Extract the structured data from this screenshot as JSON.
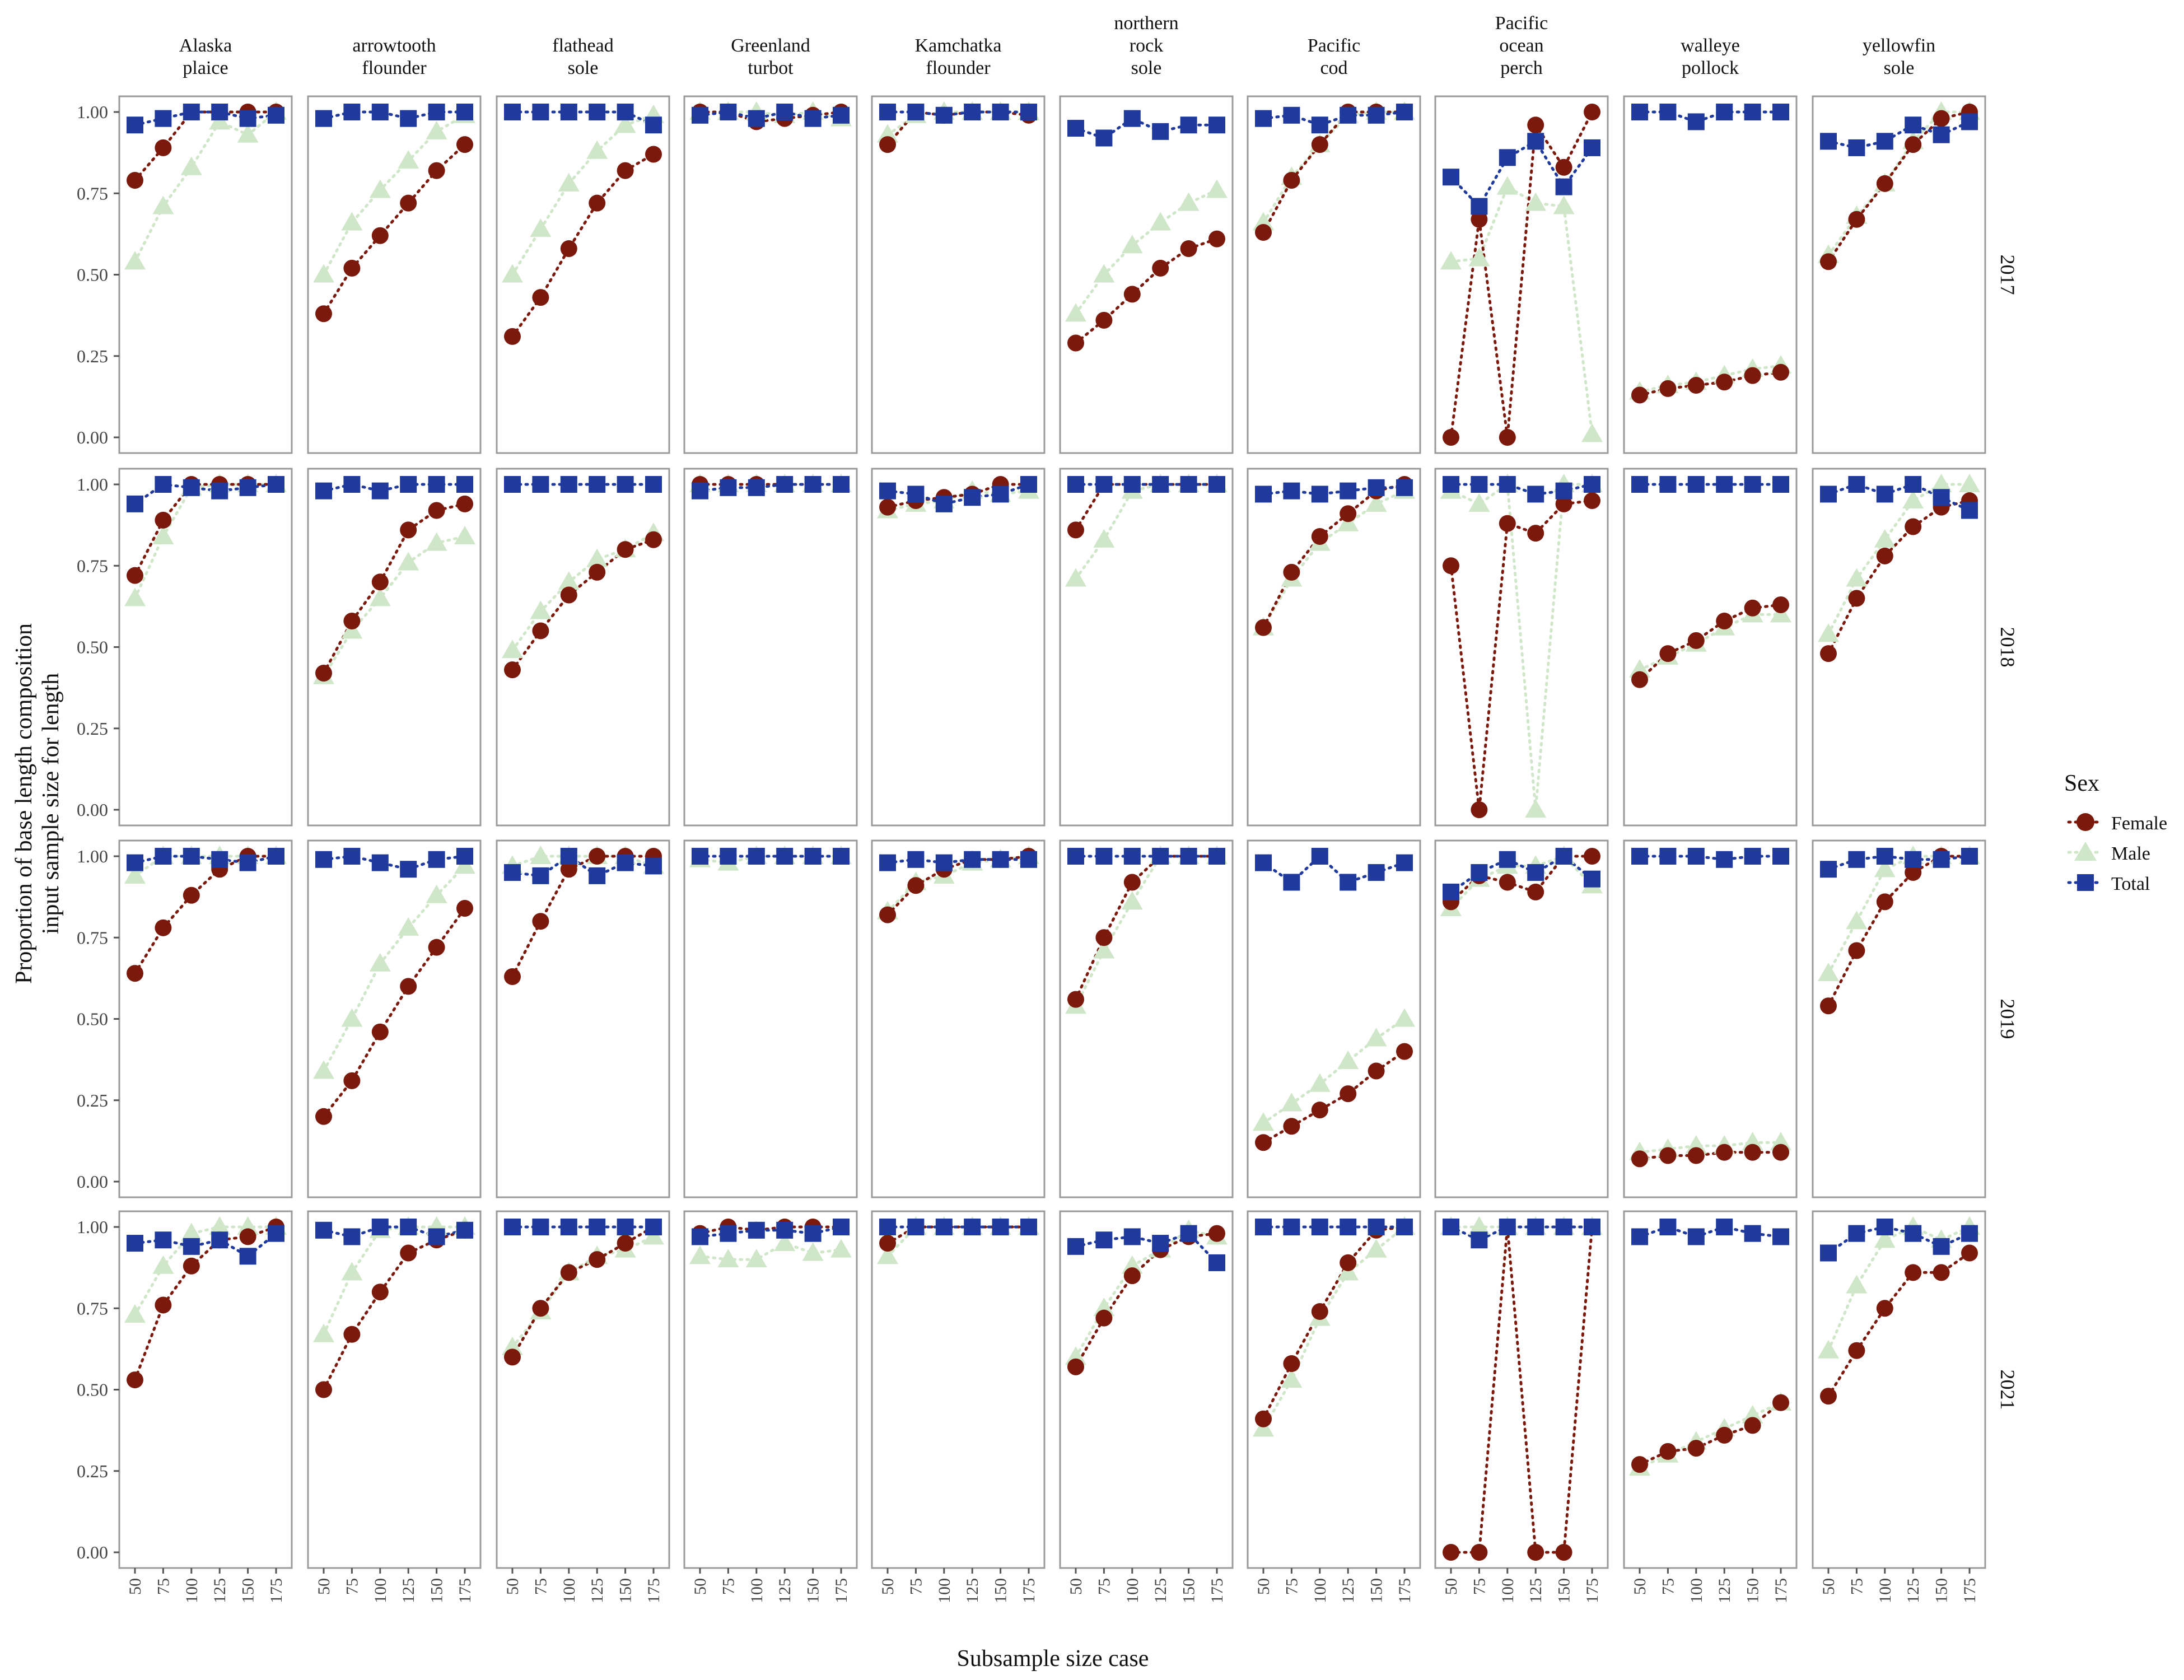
{
  "axis_labels": {
    "ylabel_line1": "Proportion of base length composition",
    "ylabel_line2": "input sample size for length",
    "xlabel": "Subsample size case"
  },
  "legend": {
    "title": "Sex",
    "items": [
      {
        "label": "Female",
        "color": "#7b1a0c",
        "shape": "circle"
      },
      {
        "label": "Male",
        "color": "#cfe6c9",
        "shape": "triangle"
      },
      {
        "label": "Total",
        "color": "#1f3a9c",
        "shape": "square"
      }
    ]
  },
  "chart_data": {
    "type": "scatter",
    "layout": "facet grid of 4 rows (years) by 10 columns (species), points joined by dotted lines",
    "columns": [
      [
        "Alaska",
        "plaice"
      ],
      [
        "arrowtooth",
        "flounder"
      ],
      [
        "flathead",
        "sole"
      ],
      [
        "Greenland",
        "turbot"
      ],
      [
        "Kamchatka",
        "flounder"
      ],
      [
        "northern",
        "rock",
        "sole"
      ],
      [
        "Pacific",
        "cod"
      ],
      [
        "Pacific",
        "ocean",
        "perch"
      ],
      [
        "walleye",
        "pollock"
      ],
      [
        "yellowfin",
        "sole"
      ]
    ],
    "rows": [
      "2017",
      "2018",
      "2019",
      "2021"
    ],
    "x": [
      50,
      75,
      100,
      125,
      150,
      175
    ],
    "x_tick_labels": [
      "50",
      "75",
      "100",
      "125",
      "150",
      "175"
    ],
    "y_tick_labels": [
      "0.00",
      "0.25",
      "0.50",
      "0.75",
      "1.00"
    ],
    "ylim": [
      0,
      1
    ],
    "series_names": [
      "Female",
      "Male",
      "Total"
    ],
    "series_colors": [
      "#7b1a0c",
      "#cfe6c9",
      "#1f3a9c"
    ],
    "panels": [
      [
        {
          "Female": [
            0.79,
            0.89,
            1.0,
            1.0,
            1.0,
            1.0
          ],
          "Male": [
            0.54,
            0.71,
            0.83,
            0.97,
            0.93,
            1.0
          ],
          "Total": [
            0.96,
            0.98,
            1.0,
            1.0,
            0.98,
            0.99
          ]
        },
        {
          "Female": [
            0.38,
            0.52,
            0.62,
            0.72,
            0.82,
            0.9
          ],
          "Male": [
            0.5,
            0.66,
            0.76,
            0.85,
            0.94,
            0.99
          ],
          "Total": [
            0.98,
            1.0,
            1.0,
            0.98,
            1.0,
            1.0
          ]
        },
        {
          "Female": [
            0.31,
            0.43,
            0.58,
            0.72,
            0.82,
            0.87
          ],
          "Male": [
            0.5,
            0.64,
            0.78,
            0.88,
            0.96,
            0.99
          ],
          "Total": [
            1.0,
            1.0,
            1.0,
            1.0,
            1.0,
            0.96
          ]
        },
        {
          "Female": [
            1.0,
            1.0,
            0.97,
            0.98,
            0.99,
            1.0
          ],
          "Male": [
            1.0,
            1.0,
            1.0,
            0.99,
            1.0,
            0.98
          ],
          "Total": [
            0.99,
            1.0,
            0.98,
            1.0,
            0.98,
            0.99
          ]
        },
        {
          "Female": [
            0.9,
            1.0,
            0.99,
            1.0,
            1.0,
            0.99
          ],
          "Male": [
            0.93,
            0.99,
            1.0,
            1.0,
            1.0,
            1.0
          ],
          "Total": [
            1.0,
            1.0,
            0.99,
            1.0,
            1.0,
            1.0
          ]
        },
        {
          "Female": [
            0.29,
            0.36,
            0.44,
            0.52,
            0.58,
            0.61
          ],
          "Male": [
            0.38,
            0.5,
            0.59,
            0.66,
            0.72,
            0.76
          ],
          "Total": [
            0.95,
            0.92,
            0.98,
            0.94,
            0.96,
            0.96
          ]
        },
        {
          "Female": [
            0.63,
            0.79,
            0.9,
            1.0,
            1.0,
            1.0
          ],
          "Male": [
            0.66,
            0.8,
            0.9,
            0.99,
            1.0,
            1.0
          ],
          "Total": [
            0.98,
            0.99,
            0.96,
            0.99,
            0.99,
            1.0
          ]
        },
        {
          "Female": [
            0.0,
            0.67,
            0.0,
            0.96,
            0.83,
            1.0
          ],
          "Male": [
            0.54,
            0.55,
            0.77,
            0.72,
            0.71,
            0.01
          ],
          "Total": [
            0.8,
            0.71,
            0.86,
            0.91,
            0.77,
            0.89
          ]
        },
        {
          "Female": [
            0.13,
            0.15,
            0.16,
            0.17,
            0.19,
            0.2
          ],
          "Male": [
            0.14,
            0.16,
            0.17,
            0.19,
            0.21,
            0.22
          ],
          "Total": [
            1.0,
            1.0,
            0.97,
            1.0,
            1.0,
            1.0
          ]
        },
        {
          "Female": [
            0.54,
            0.67,
            0.78,
            0.9,
            0.98,
            1.0
          ],
          "Male": [
            0.56,
            0.68,
            0.78,
            0.91,
            1.0,
            1.0
          ],
          "Total": [
            0.91,
            0.89,
            0.91,
            0.96,
            0.93,
            0.97
          ]
        }
      ],
      [
        {
          "Female": [
            0.72,
            0.89,
            1.0,
            1.0,
            1.0,
            1.0
          ],
          "Male": [
            0.65,
            0.84,
            0.99,
            1.0,
            1.0,
            1.0
          ],
          "Total": [
            0.94,
            1.0,
            0.99,
            0.98,
            0.99,
            1.0
          ]
        },
        {
          "Female": [
            0.42,
            0.58,
            0.7,
            0.86,
            0.92,
            0.94
          ],
          "Male": [
            0.41,
            0.55,
            0.65,
            0.76,
            0.82,
            0.84
          ],
          "Total": [
            0.98,
            1.0,
            0.98,
            1.0,
            1.0,
            1.0
          ]
        },
        {
          "Female": [
            0.43,
            0.55,
            0.66,
            0.73,
            0.8,
            0.83
          ],
          "Male": [
            0.49,
            0.61,
            0.7,
            0.77,
            0.8,
            0.85
          ],
          "Total": [
            1.0,
            1.0,
            1.0,
            1.0,
            1.0,
            1.0
          ]
        },
        {
          "Female": [
            1.0,
            1.0,
            1.0,
            1.0,
            1.0,
            1.0
          ],
          "Male": [
            1.0,
            1.0,
            1.0,
            1.0,
            1.0,
            1.0
          ],
          "Total": [
            0.98,
            0.99,
            0.99,
            1.0,
            1.0,
            1.0
          ]
        },
        {
          "Female": [
            0.93,
            0.95,
            0.96,
            0.97,
            1.0,
            1.0
          ],
          "Male": [
            0.92,
            0.94,
            0.95,
            0.98,
            0.97,
            0.98
          ],
          "Total": [
            0.98,
            0.97,
            0.94,
            0.96,
            0.97,
            1.0
          ]
        },
        {
          "Female": [
            0.86,
            1.0,
            1.0,
            1.0,
            1.0,
            1.0
          ],
          "Male": [
            0.71,
            0.83,
            0.98,
            1.0,
            1.0,
            1.0
          ],
          "Total": [
            1.0,
            1.0,
            1.0,
            1.0,
            1.0,
            1.0
          ]
        },
        {
          "Female": [
            0.56,
            0.73,
            0.84,
            0.91,
            0.98,
            1.0
          ],
          "Male": [
            0.56,
            0.71,
            0.82,
            0.88,
            0.94,
            0.98
          ],
          "Total": [
            0.97,
            0.98,
            0.97,
            0.98,
            0.99,
            0.99
          ]
        },
        {
          "Female": [
            0.75,
            0.0,
            0.88,
            0.85,
            0.94,
            0.95
          ],
          "Male": [
            0.98,
            0.94,
            1.0,
            0.0,
            1.0,
            1.0
          ],
          "Total": [
            1.0,
            1.0,
            1.0,
            0.97,
            0.98,
            1.0
          ]
        },
        {
          "Female": [
            0.4,
            0.48,
            0.52,
            0.58,
            0.62,
            0.63
          ],
          "Male": [
            0.43,
            0.47,
            0.51,
            0.56,
            0.6,
            0.6
          ],
          "Total": [
            1.0,
            1.0,
            1.0,
            1.0,
            1.0,
            1.0
          ]
        },
        {
          "Female": [
            0.48,
            0.65,
            0.78,
            0.87,
            0.93,
            0.95
          ],
          "Male": [
            0.54,
            0.71,
            0.83,
            0.95,
            1.0,
            1.0
          ],
          "Total": [
            0.97,
            1.0,
            0.97,
            1.0,
            0.96,
            0.92
          ]
        }
      ],
      [
        {
          "Female": [
            0.64,
            0.78,
            0.88,
            0.96,
            1.0,
            1.0
          ],
          "Male": [
            0.94,
            1.0,
            1.0,
            1.0,
            1.0,
            1.0
          ],
          "Total": [
            0.98,
            1.0,
            1.0,
            0.99,
            0.98,
            1.0
          ]
        },
        {
          "Female": [
            0.2,
            0.31,
            0.46,
            0.6,
            0.72,
            0.84
          ],
          "Male": [
            0.34,
            0.5,
            0.67,
            0.78,
            0.88,
            0.97
          ],
          "Total": [
            0.99,
            1.0,
            0.98,
            0.96,
            0.99,
            1.0
          ]
        },
        {
          "Female": [
            0.63,
            0.8,
            0.96,
            1.0,
            1.0,
            1.0
          ],
          "Male": [
            0.97,
            1.0,
            1.0,
            1.0,
            1.0,
            0.97
          ],
          "Total": [
            0.95,
            0.94,
            1.0,
            0.94,
            0.98,
            0.97
          ]
        },
        {
          "Female": [
            1.0,
            1.0,
            1.0,
            1.0,
            1.0,
            1.0
          ],
          "Male": [
            0.99,
            0.98,
            1.0,
            1.0,
            1.0,
            1.0
          ],
          "Total": [
            1.0,
            1.0,
            1.0,
            1.0,
            1.0,
            1.0
          ]
        },
        {
          "Female": [
            0.82,
            0.91,
            0.96,
            0.99,
            0.99,
            1.0
          ],
          "Male": [
            0.83,
            0.92,
            0.94,
            0.98,
            0.99,
            1.0
          ],
          "Total": [
            0.98,
            0.99,
            0.98,
            0.99,
            0.99,
            0.99
          ]
        },
        {
          "Female": [
            0.56,
            0.75,
            0.92,
            1.0,
            1.0,
            1.0
          ],
          "Male": [
            0.54,
            0.71,
            0.86,
            1.0,
            1.0,
            1.0
          ],
          "Total": [
            1.0,
            1.0,
            1.0,
            1.0,
            1.0,
            1.0
          ]
        },
        {
          "Female": [
            0.12,
            0.17,
            0.22,
            0.27,
            0.34,
            0.4
          ],
          "Male": [
            0.18,
            0.24,
            0.3,
            0.37,
            0.44,
            0.5
          ],
          "Total": [
            0.98,
            0.92,
            1.0,
            0.92,
            0.95,
            0.98
          ]
        },
        {
          "Female": [
            0.86,
            0.94,
            0.92,
            0.89,
            1.0,
            1.0
          ],
          "Male": [
            0.84,
            0.93,
            0.97,
            0.97,
            1.0,
            0.91
          ],
          "Total": [
            0.89,
            0.95,
            0.99,
            0.95,
            1.0,
            0.93
          ]
        },
        {
          "Female": [
            0.07,
            0.08,
            0.08,
            0.09,
            0.09,
            0.09
          ],
          "Male": [
            0.09,
            0.1,
            0.11,
            0.11,
            0.12,
            0.12
          ],
          "Total": [
            1.0,
            1.0,
            1.0,
            0.99,
            1.0,
            1.0
          ]
        },
        {
          "Female": [
            0.54,
            0.71,
            0.86,
            0.95,
            1.0,
            1.0
          ],
          "Male": [
            0.64,
            0.8,
            0.96,
            1.0,
            1.0,
            1.0
          ],
          "Total": [
            0.96,
            0.99,
            1.0,
            0.99,
            0.99,
            1.0
          ]
        }
      ],
      [
        {
          "Female": [
            0.53,
            0.76,
            0.88,
            0.96,
            0.97,
            1.0
          ],
          "Male": [
            0.73,
            0.88,
            0.98,
            1.0,
            1.0,
            1.0
          ],
          "Total": [
            0.95,
            0.96,
            0.94,
            0.96,
            0.91,
            0.98
          ]
        },
        {
          "Female": [
            0.5,
            0.67,
            0.8,
            0.92,
            0.96,
            0.99
          ],
          "Male": [
            0.67,
            0.86,
            0.99,
            1.0,
            1.0,
            1.0
          ],
          "Total": [
            0.99,
            0.97,
            1.0,
            1.0,
            0.97,
            0.99
          ]
        },
        {
          "Female": [
            0.6,
            0.75,
            0.86,
            0.9,
            0.95,
            1.0
          ],
          "Male": [
            0.63,
            0.74,
            0.86,
            0.91,
            0.93,
            0.97
          ],
          "Total": [
            1.0,
            1.0,
            1.0,
            1.0,
            1.0,
            1.0
          ]
        },
        {
          "Female": [
            0.98,
            1.0,
            0.99,
            1.0,
            1.0,
            1.0
          ],
          "Male": [
            0.91,
            0.9,
            0.9,
            0.95,
            0.92,
            0.93
          ],
          "Total": [
            0.97,
            0.98,
            0.99,
            0.99,
            0.98,
            1.0
          ]
        },
        {
          "Female": [
            0.95,
            1.0,
            1.0,
            1.0,
            1.0,
            1.0
          ],
          "Male": [
            0.91,
            1.0,
            1.0,
            1.0,
            1.0,
            1.0
          ],
          "Total": [
            1.0,
            1.0,
            1.0,
            1.0,
            1.0,
            1.0
          ]
        },
        {
          "Female": [
            0.57,
            0.72,
            0.85,
            0.93,
            0.97,
            0.98
          ],
          "Male": [
            0.6,
            0.75,
            0.88,
            0.93,
            0.99,
            0.97
          ],
          "Total": [
            0.94,
            0.96,
            0.97,
            0.95,
            0.98,
            0.89
          ]
        },
        {
          "Female": [
            0.41,
            0.58,
            0.74,
            0.89,
            0.99,
            1.0
          ],
          "Male": [
            0.38,
            0.53,
            0.72,
            0.86,
            0.93,
            1.0
          ],
          "Total": [
            1.0,
            1.0,
            1.0,
            1.0,
            1.0,
            1.0
          ]
        },
        {
          "Female": [
            0.0,
            0.0,
            1.0,
            0.0,
            0.0,
            1.0
          ],
          "Male": [
            1.0,
            1.0,
            1.0,
            1.0,
            1.0,
            1.0
          ],
          "Total": [
            1.0,
            0.96,
            1.0,
            1.0,
            1.0,
            1.0
          ]
        },
        {
          "Female": [
            0.27,
            0.31,
            0.32,
            0.36,
            0.39,
            0.46
          ],
          "Male": [
            0.26,
            0.3,
            0.34,
            0.38,
            0.42,
            0.46
          ],
          "Total": [
            0.97,
            1.0,
            0.97,
            1.0,
            0.98,
            0.97
          ]
        },
        {
          "Female": [
            0.48,
            0.62,
            0.75,
            0.86,
            0.86,
            0.92
          ],
          "Male": [
            0.62,
            0.82,
            0.96,
            1.0,
            0.96,
            1.0
          ],
          "Total": [
            0.92,
            0.98,
            1.0,
            0.98,
            0.94,
            0.98
          ]
        }
      ]
    ]
  }
}
